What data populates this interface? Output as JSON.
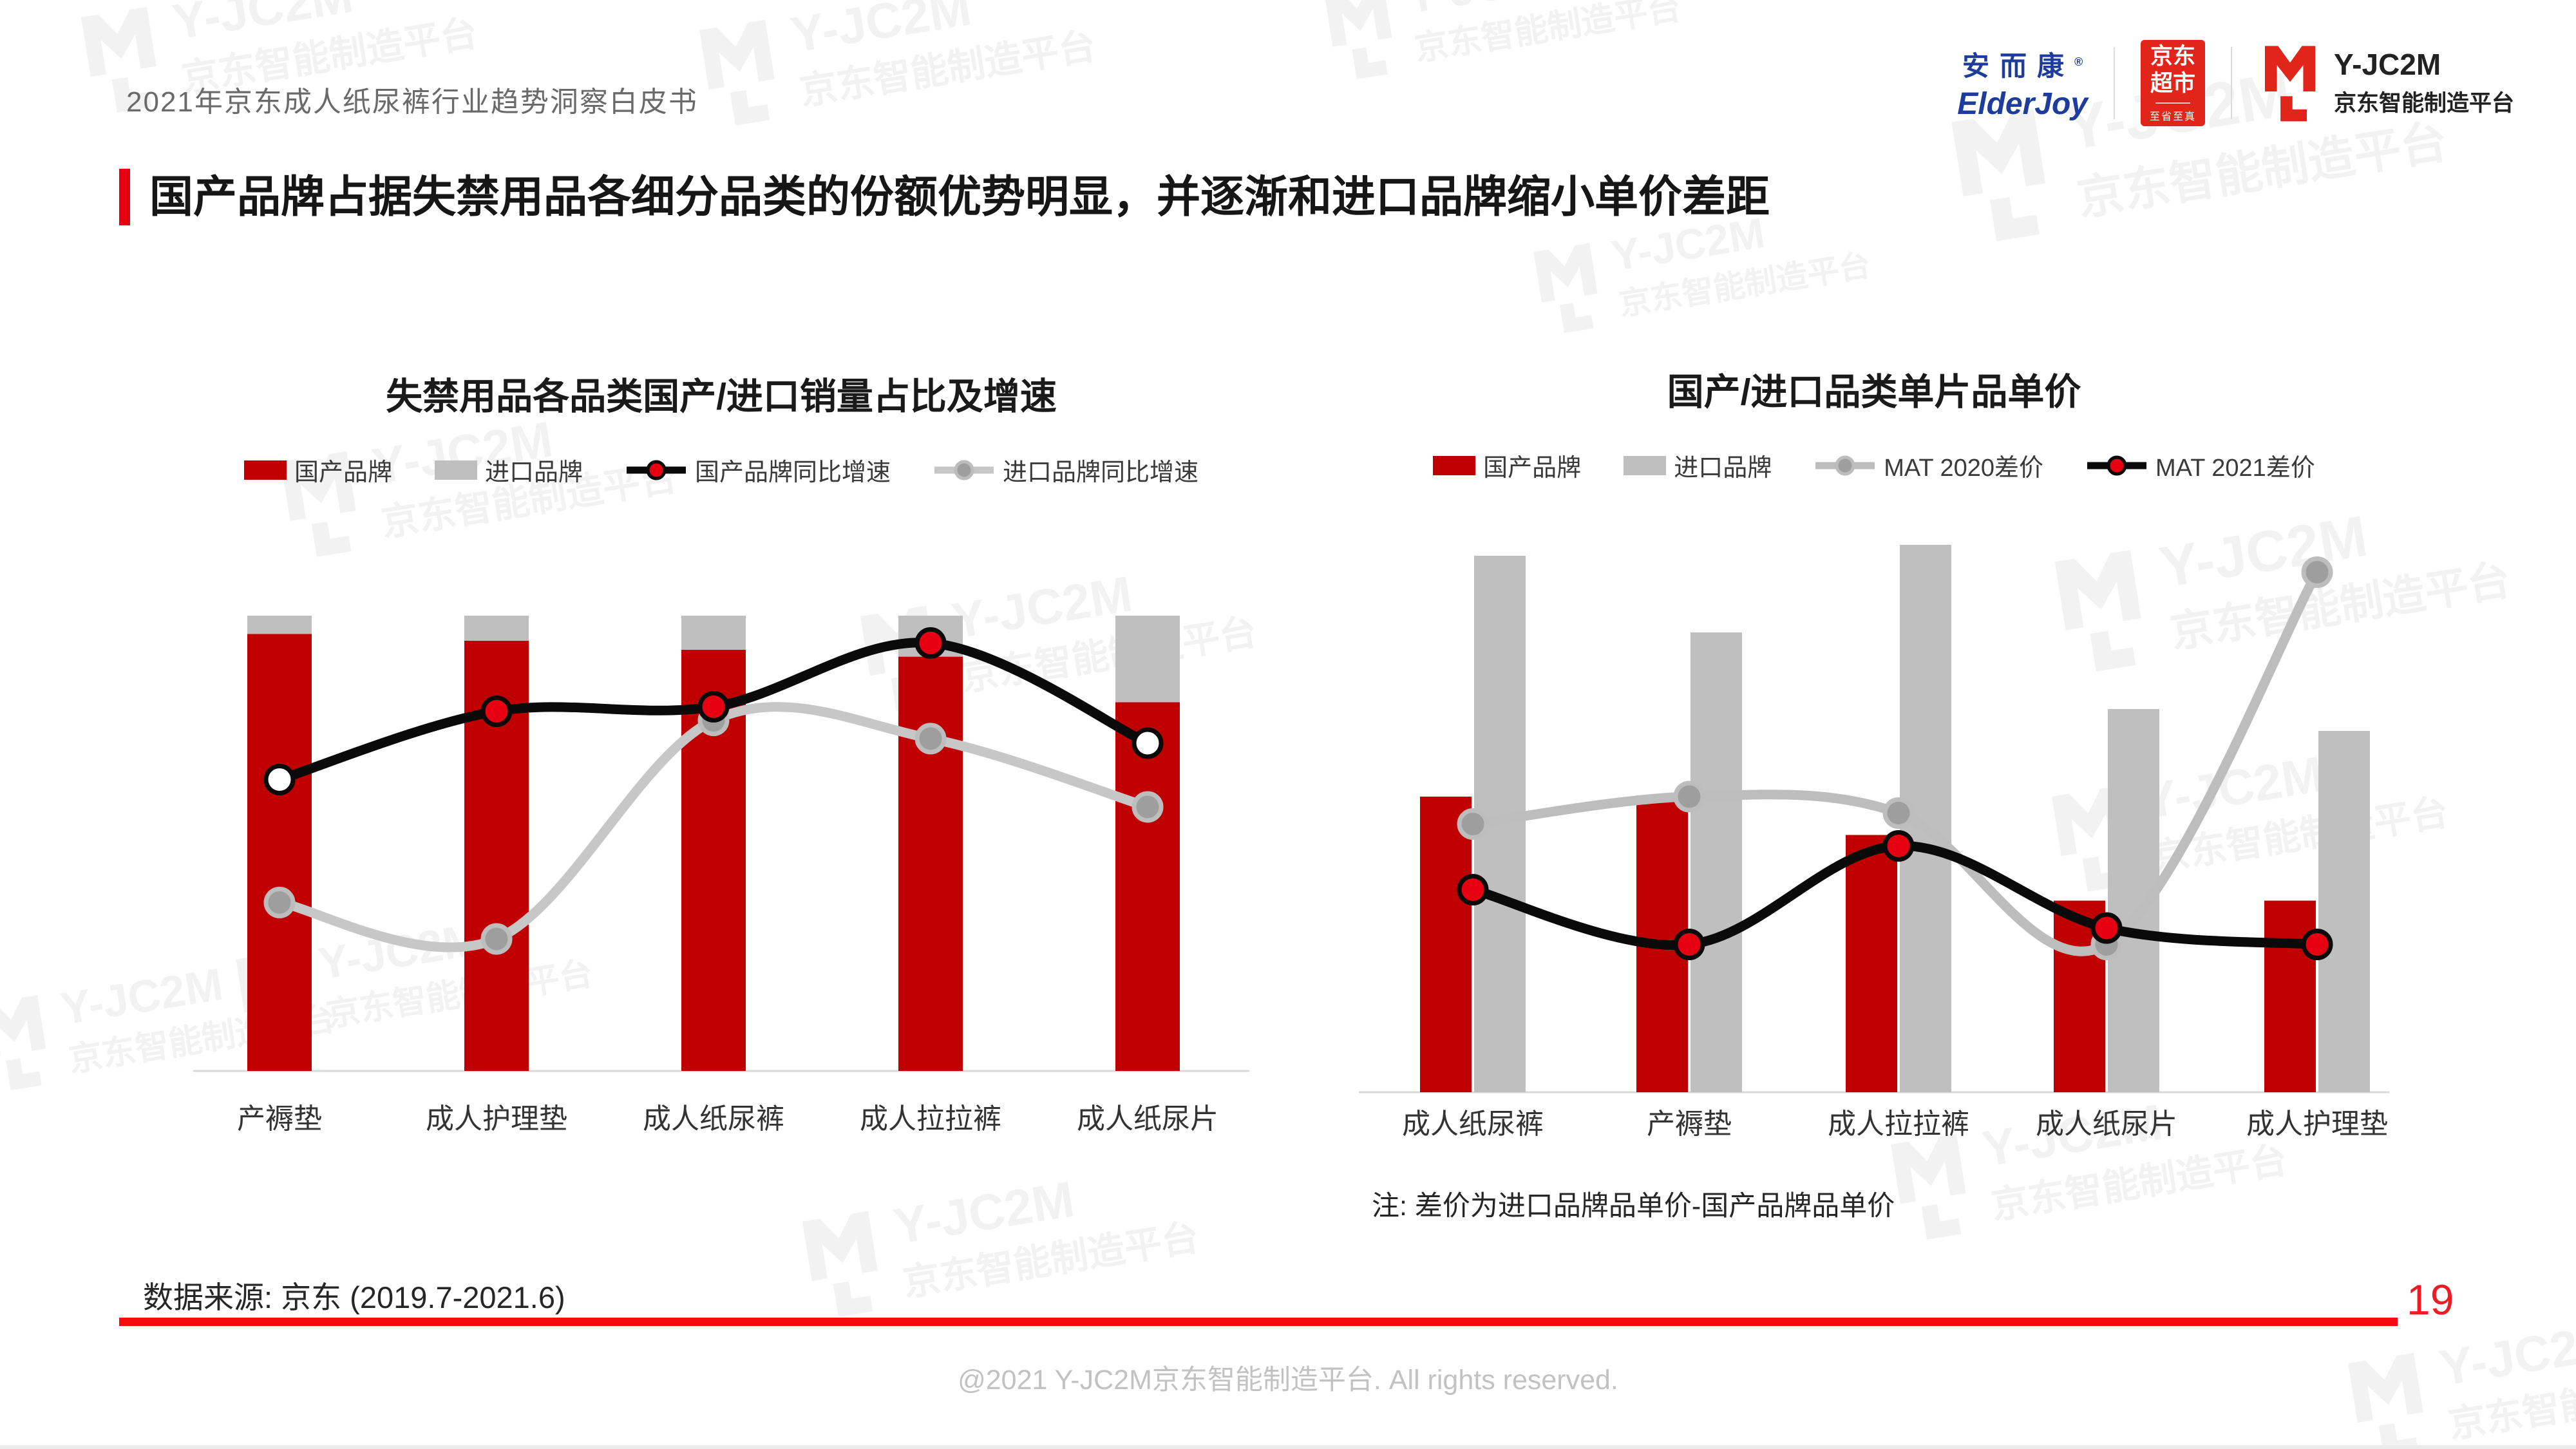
{
  "page": {
    "subtitle": "2021年京东成人纸尿裤行业趋势洞察白皮书",
    "heading": "国产品牌占据失禁用品各细分品类的份额优势明显，并逐渐和进口品牌缩小单价差距",
    "note": "注: 差价为进口品牌品单价-国产品牌品单价",
    "data_source": "数据来源: 京东 (2019.7-2021.6)",
    "copyright": "@2021 Y-JC2M京东智能制造平台. All rights reserved.",
    "page_number": "19"
  },
  "logos": {
    "elderjoy_cn": "安而康",
    "elderjoy_reg": "®",
    "elderjoy_en": "ElderJoy",
    "jd_line1": "京东",
    "jd_line2": "超市",
    "jd_tagline": "至省至真",
    "yjc2m_name": "Y-JC2M",
    "yjc2m_cn": "京东智能制造平台"
  },
  "watermark": {
    "line1": "Y-JC2M",
    "line2": "京东智能制造平台"
  },
  "colors": {
    "accent_red": "#E60012",
    "bar_red": "#C00000",
    "bar_gray": "#BFBFBF",
    "line_black": "#0A0A0A",
    "line_gray": "#C7C7C7",
    "marker_red": "#E60012",
    "marker_gray": "#9E9E9E",
    "jd_red": "#E1251B",
    "elderjoy_blue": "#1E3C9B",
    "footer_line_red": "#F40B0B",
    "page_number_red": "#ED1C24"
  },
  "chart_data": [
    {
      "type": "bar",
      "subtype": "stacked-100-bar-with-lines",
      "stacked": true,
      "title": "失禁用品各品类国产/进口销量占比及增速",
      "categories": [
        "产褥垫",
        "成人护理垫",
        "成人纸尿裤",
        "成人拉拉裤",
        "成人纸尿片"
      ],
      "xlabel": "",
      "ylabel": "",
      "ylim": [
        0,
        100
      ],
      "grid": false,
      "legend_position": "top",
      "axis_labels_shown": false,
      "units": "relative share % (no axis labels shown; values estimated from pixels)",
      "series": [
        {
          "name": "国产品牌",
          "type": "bar",
          "color": "#C00000",
          "values": [
            96,
            94.5,
            92.5,
            91,
            81
          ]
        },
        {
          "name": "进口品牌",
          "type": "bar",
          "color": "#BFBFBF",
          "values": [
            4,
            5.5,
            7.5,
            9,
            19
          ]
        },
        {
          "name": "国产品牌同比增速",
          "type": "line",
          "color": "#0A0A0A",
          "z": 2,
          "values": [
            64,
            79,
            80,
            94,
            72
          ],
          "marker_fills": [
            "#FFFFFF",
            "#E60012",
            "#E60012",
            "#E60012",
            "#FFFFFF"
          ],
          "marker_stroke": "#0A0A0A"
        },
        {
          "name": "进口品牌同比增速",
          "type": "line",
          "color": "#C7C7C7",
          "z": 1,
          "values": [
            37,
            29,
            77,
            73,
            58
          ],
          "marker_fill": "#9E9E9E",
          "marker_stroke": "#BDBDBD"
        }
      ]
    },
    {
      "type": "bar",
      "subtype": "grouped-bar-with-lines",
      "stacked": false,
      "title": "国产/进口品类单片品单价",
      "categories": [
        "成人纸尿裤",
        "产褥垫",
        "成人拉拉裤",
        "成人纸尿片",
        "成人护理垫"
      ],
      "xlabel": "",
      "ylabel": "",
      "ylim": [
        0,
        105
      ],
      "grid": false,
      "legend_position": "top",
      "axis_labels_shown": false,
      "units": "relative unit price (no axis labels shown; values estimated from pixels)",
      "series": [
        {
          "name": "国产品牌",
          "type": "bar",
          "color": "#C00000",
          "values": [
            54,
            53,
            47,
            35,
            35
          ]
        },
        {
          "name": "进口品牌",
          "type": "bar",
          "color": "#BFBFBF",
          "values": [
            98,
            84,
            100,
            70,
            66
          ]
        },
        {
          "name": "MAT 2020差价",
          "type": "line",
          "color": "#BDBDBD",
          "z": 1,
          "values": [
            49,
            54,
            51,
            27,
            95
          ],
          "marker_fill": "#9E9E9E",
          "marker_stroke": "#BDBDBD"
        },
        {
          "name": "MAT 2021差价",
          "type": "line",
          "color": "#0A0A0A",
          "z": 2,
          "values": [
            37,
            27,
            45,
            30,
            27
          ],
          "marker_fill": "#E60012",
          "marker_stroke": "#0A0A0A"
        }
      ]
    }
  ]
}
